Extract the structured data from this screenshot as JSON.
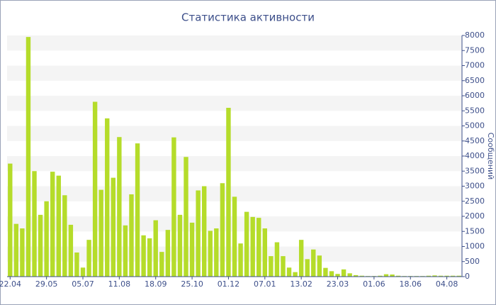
{
  "chart_data": {
    "type": "bar",
    "title": "Статистика активности",
    "y_label": "Сообщений",
    "categories": [
      "22.04",
      null,
      null,
      null,
      null,
      null,
      "29.05",
      null,
      null,
      null,
      null,
      null,
      "05.07",
      null,
      null,
      null,
      null,
      null,
      "11.08",
      null,
      null,
      null,
      null,
      null,
      "18.09",
      null,
      null,
      null,
      null,
      null,
      "25.10",
      null,
      null,
      null,
      null,
      null,
      "01.12",
      null,
      null,
      null,
      null,
      null,
      "07.01",
      null,
      null,
      null,
      null,
      null,
      "13.02",
      null,
      null,
      null,
      null,
      null,
      "23.03",
      null,
      null,
      null,
      null,
      null,
      "01.06",
      null,
      null,
      null,
      null,
      null,
      "18.06",
      null,
      null,
      null,
      null,
      null,
      "04.08",
      null,
      null
    ],
    "values": [
      3750,
      1750,
      1600,
      7950,
      3500,
      2050,
      2500,
      3480,
      3350,
      2700,
      1720,
      800,
      300,
      1220,
      5800,
      2880,
      5250,
      3280,
      4630,
      1700,
      2730,
      4420,
      1370,
      1270,
      1870,
      820,
      1550,
      4620,
      2050,
      3970,
      1790,
      2860,
      3000,
      1520,
      1600,
      3100,
      5600,
      2650,
      1100,
      2150,
      1980,
      1950,
      1600,
      680,
      1140,
      680,
      300,
      150,
      1220,
      580,
      900,
      700,
      290,
      180,
      90,
      240,
      110,
      50,
      30,
      20,
      20,
      30,
      80,
      70,
      30,
      20,
      20,
      20,
      20,
      30,
      40,
      30,
      30,
      30,
      30
    ],
    "color": "#b5dc2a",
    "ylim": [
      0,
      8000
    ],
    "yticks": [
      0,
      500,
      1000,
      1500,
      2000,
      2500,
      3000,
      3500,
      4000,
      4500,
      5000,
      5500,
      6000,
      6500,
      7000,
      7500,
      8000
    ],
    "grid": true
  }
}
